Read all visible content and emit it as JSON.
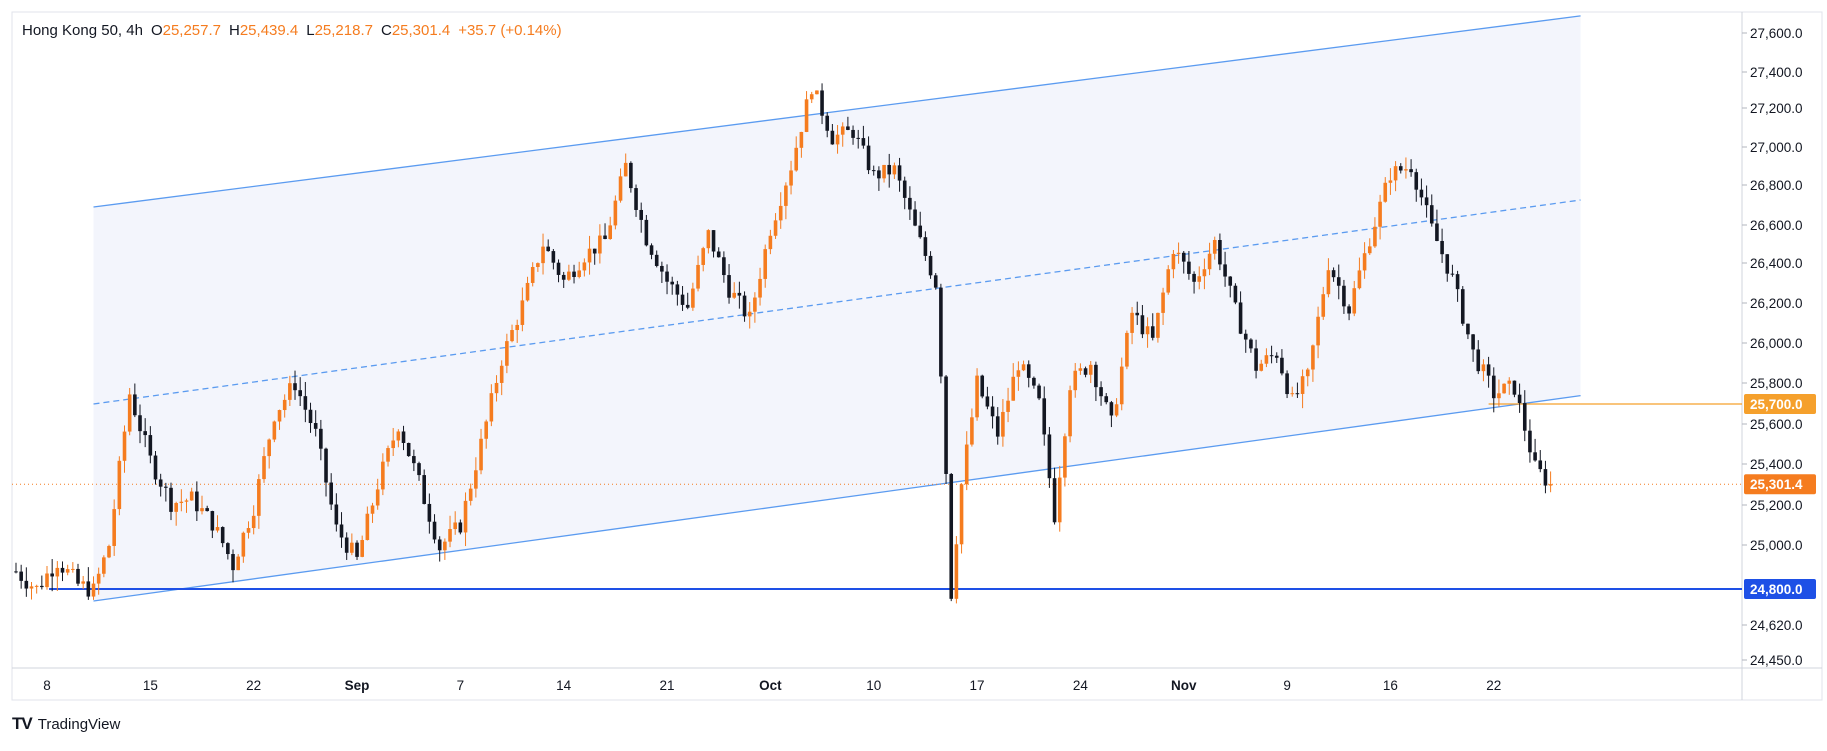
{
  "header": {
    "symbol": "Hong Kong 50, 4h",
    "open_label": "O",
    "open": "25,257.7",
    "high_label": "H",
    "high": "25,439.4",
    "low_label": "L",
    "low": "25,218.7",
    "close_label": "C",
    "close": "25,301.4",
    "change": "+35.7 (+0.14%)"
  },
  "brand": {
    "name": "TradingView",
    "logo": "TV"
  },
  "colors": {
    "up": "#f57c1f",
    "down": "#131722",
    "channel": "#5b9bf0",
    "channel_fill": "#eef1fb",
    "support": "#1e50e6",
    "level_orange": "#f5a02c",
    "last_price": "#f57c1f",
    "grid_text": "#131722"
  },
  "price_labels": {
    "resistance_level": "25,700.0",
    "last_price": "25,301.4",
    "support_level": "24,800.0"
  },
  "chart_data": {
    "type": "candlestick",
    "timeframe": "4h",
    "ylim": [
      24400,
      27700
    ],
    "x_range": [
      0,
      153
    ],
    "y_ticks": [
      "27,600.0",
      "27,400.0",
      "27,200.0",
      "27,000.0",
      "26,800.0",
      "26,600.0",
      "26,400.0",
      "26,200.0",
      "26,000.0",
      "25,800.0",
      "25,600.0",
      "25,400.0",
      "25,200.0",
      "25,000.0",
      "24,620.0",
      "24,450.0"
    ],
    "y_tick_values": [
      27600,
      27400,
      27200,
      27000,
      26800,
      26600,
      26400,
      26200,
      26000,
      25800,
      25600,
      25400,
      25200,
      25000,
      24620,
      24450
    ],
    "x_ticks": [
      {
        "label": "8",
        "x": 3
      },
      {
        "label": "15",
        "x": 13
      },
      {
        "label": "22",
        "x": 23
      },
      {
        "label": "Sep",
        "x": 33
      },
      {
        "label": "7",
        "x": 43
      },
      {
        "label": "14",
        "x": 53
      },
      {
        "label": "21",
        "x": 63
      },
      {
        "label": "Oct",
        "x": 73
      },
      {
        "label": "10",
        "x": 83
      },
      {
        "label": "17",
        "x": 93
      },
      {
        "label": "24",
        "x": 103
      },
      {
        "label": "Nov",
        "x": 113
      },
      {
        "label": "9",
        "x": 123
      },
      {
        "label": "16",
        "x": 133
      },
      {
        "label": "22",
        "x": 143
      }
    ],
    "trend_channel": {
      "upper": [
        [
          7.5,
          26690
        ],
        [
          151.4,
          27690
        ]
      ],
      "middle": [
        [
          7.5,
          25700
        ],
        [
          151.4,
          26725
        ]
      ],
      "lower": [
        [
          7.5,
          24740
        ],
        [
          151.4,
          25740
        ]
      ],
      "fill_right_x": 151.4
    },
    "horizontal_levels": [
      {
        "value": 24800,
        "style": "support"
      },
      {
        "value": 25700,
        "style": "resistance"
      }
    ],
    "last_price": 25301.4,
    "path": [
      [
        0,
        24880
      ],
      [
        2,
        24800
      ],
      [
        4,
        24930
      ],
      [
        6,
        24820
      ],
      [
        7.5,
        24790
      ],
      [
        9,
        25000
      ],
      [
        11,
        25750
      ],
      [
        13,
        25420
      ],
      [
        15,
        25210
      ],
      [
        17,
        25230
      ],
      [
        19,
        25110
      ],
      [
        21,
        24910
      ],
      [
        23,
        25190
      ],
      [
        25,
        25650
      ],
      [
        27,
        25800
      ],
      [
        29,
        25550
      ],
      [
        31,
        25080
      ],
      [
        33,
        24930
      ],
      [
        35,
        25300
      ],
      [
        37,
        25600
      ],
      [
        39,
        25310
      ],
      [
        41,
        24990
      ],
      [
        43,
        25100
      ],
      [
        45,
        25500
      ],
      [
        47,
        25920
      ],
      [
        49,
        26190
      ],
      [
        51,
        26500
      ],
      [
        53,
        26310
      ],
      [
        55,
        26440
      ],
      [
        57,
        26520
      ],
      [
        59,
        26900
      ],
      [
        61,
        26530
      ],
      [
        63,
        26310
      ],
      [
        65,
        26180
      ],
      [
        67,
        26550
      ],
      [
        69,
        26270
      ],
      [
        71,
        26120
      ],
      [
        73,
        26580
      ],
      [
        75,
        26900
      ],
      [
        77,
        27320
      ],
      [
        79,
        27050
      ],
      [
        81,
        27080
      ],
      [
        83,
        26850
      ],
      [
        85,
        26880
      ],
      [
        87,
        26580
      ],
      [
        89,
        26300
      ],
      [
        89.8,
        25600
      ],
      [
        90.5,
        24780
      ],
      [
        91.5,
        25300
      ],
      [
        93,
        25800
      ],
      [
        95,
        25550
      ],
      [
        97,
        25900
      ],
      [
        99,
        25700
      ],
      [
        100.5,
        25150
      ],
      [
        102,
        25800
      ],
      [
        104,
        25900
      ],
      [
        106,
        25600
      ],
      [
        108,
        26150
      ],
      [
        110,
        26010
      ],
      [
        112,
        26480
      ],
      [
        114,
        26300
      ],
      [
        116,
        26510
      ],
      [
        118,
        26160
      ],
      [
        120,
        25880
      ],
      [
        122,
        25950
      ],
      [
        123.5,
        25710
      ],
      [
        125,
        25830
      ],
      [
        127,
        26400
      ],
      [
        129,
        26170
      ],
      [
        131,
        26530
      ],
      [
        133,
        26860
      ],
      [
        135,
        26900
      ],
      [
        137,
        26580
      ],
      [
        139,
        26320
      ],
      [
        141,
        25950
      ],
      [
        143,
        25750
      ],
      [
        145,
        25780
      ],
      [
        147,
        25380
      ],
      [
        148.5,
        25300
      ]
    ]
  }
}
